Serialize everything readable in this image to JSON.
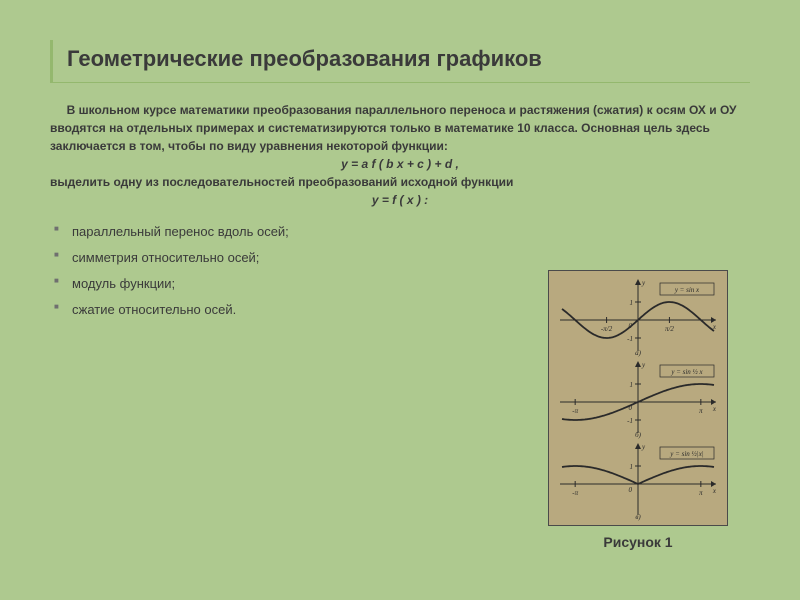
{
  "slide": {
    "title": "Геометрические преобразования графиков",
    "para_indent": "     В школьном курсе математики преобразования параллельного переноса и растяжения (сжатия) к осям ОХ и ОУ вводятся на отдельных примерах и систематизируются только в математике 10 класса. Основная цель здесь заключается в том, чтобы по виду уравнения некоторой функции:",
    "formula1": "y = a f ( b x + c ) + d ,",
    "para2": "выделить одну из последовательностей преобразований исходной функции",
    "formula2": "y = f ( x ) :",
    "bullets": [
      "параллельный перенос вдоль осей;",
      "симметрия относительно осей;",
      "модуль функции;",
      "сжатие относительно осей."
    ],
    "figure_caption": "Рисунок 1"
  },
  "figure": {
    "background": "#b8a97f",
    "border": "#4a4a4a",
    "panels": [
      {
        "type": "sine",
        "equation": "y = sin x",
        "x_range": [
          -3.8,
          3.8
        ],
        "amplitude": 18,
        "freq": 1,
        "abs": false,
        "xticks": [
          {
            "x": -1.5708,
            "label": "-π/2"
          },
          {
            "x": 1.5708,
            "label": "π/2"
          }
        ],
        "yticks": [
          1,
          -1
        ],
        "marker": "а)"
      },
      {
        "type": "sine",
        "equation": "y = sin ½ x",
        "x_range": [
          -3.8,
          3.8
        ],
        "amplitude": 18,
        "freq": 0.5,
        "abs": false,
        "xticks": [
          {
            "x": -3.1416,
            "label": "-π"
          },
          {
            "x": 3.1416,
            "label": "π"
          }
        ],
        "yticks": [
          1,
          -1
        ],
        "marker": "б)"
      },
      {
        "type": "sine",
        "equation": "y = sin ½|x|",
        "x_range": [
          -3.8,
          3.8
        ],
        "amplitude": 18,
        "freq": 0.5,
        "abs": true,
        "xticks": [
          {
            "x": -3.1416,
            "label": "-π"
          },
          {
            "x": 3.1416,
            "label": "π"
          }
        ],
        "yticks": [
          1
        ],
        "marker": "в)"
      }
    ]
  },
  "style": {
    "background": "#aec98f",
    "title_border": "#94b86e",
    "text_color": "#3a3a3a",
    "bullet_color": "#6f6f6f",
    "title_fontsize": 22,
    "body_fontsize": 12,
    "bullet_fontsize": 13
  }
}
